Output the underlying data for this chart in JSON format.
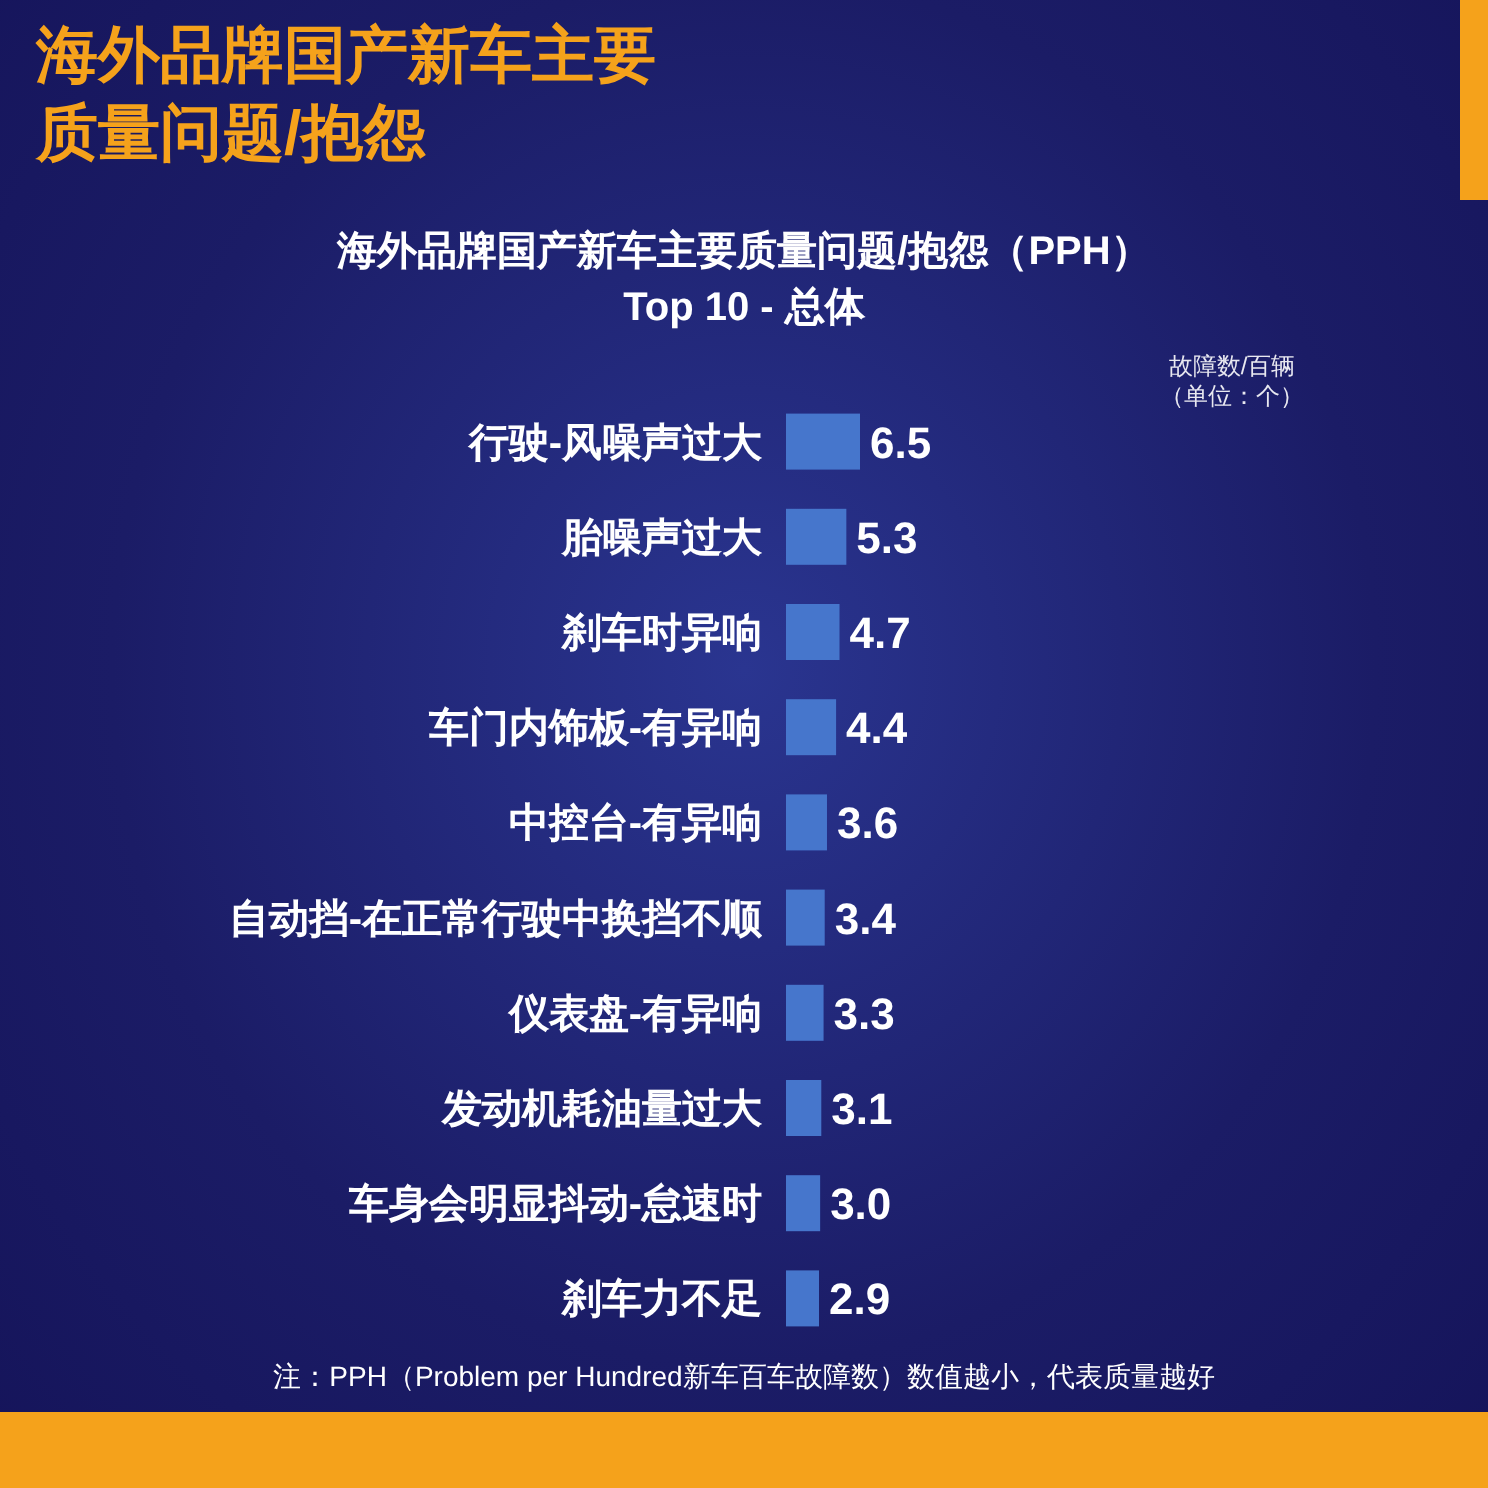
{
  "chart_data": {
    "type": "bar",
    "orientation": "horizontal",
    "title": "海外品牌国产新车主要质量问题/抱怨（PPH）",
    "subtitle": "Top 10 - 总体",
    "categories": [
      "行驶-风噪声过大",
      "胎噪声过大",
      "刹车时异响",
      "车门内饰板-有异响",
      "中控台-有异响",
      "自动挡-在正常行驶中换挡不顺",
      "仪表盘-有异响",
      "发动机耗油量过大",
      "车身会明显抖动-怠速时",
      "刹车力不足"
    ],
    "values": [
      6.5,
      5.3,
      4.7,
      4.4,
      3.6,
      3.4,
      3.3,
      3.1,
      3.0,
      2.9
    ],
    "color": "#4676cc",
    "value_labels": [
      "6.5",
      "5.3",
      "4.7",
      "4.4",
      "3.6",
      "3.4",
      "3.3",
      "3.1",
      "3.0",
      "2.9"
    ],
    "annotations": [
      "海外品牌国产新车主要质量问题/抱怨",
      "故障数/百辆（单位：个）",
      "注：PPH（Problem per Hundred新车百车故障数）数值越小，代表质量越好"
    ]
  }
}
